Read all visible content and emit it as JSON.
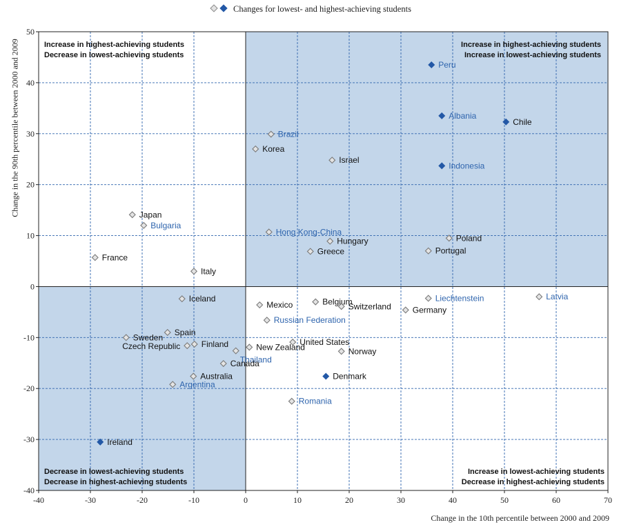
{
  "legend": {
    "label": "Changes for lowest- and highest-achieving students"
  },
  "colors": {
    "quad_fill": "#c3d6ea",
    "grid": "#2e64ad",
    "filled_marker": "#2358a6",
    "highlight_label": "#2e64ad",
    "label": "#111111"
  },
  "chart_data": {
    "type": "scatter",
    "title": "",
    "xlabel": "Change in the 10th percentile between 2000 and 2009",
    "ylabel": "Change in the 90th percentile between 2000 and 2009",
    "xlim": [
      -40,
      70
    ],
    "ylim": [
      -40,
      50
    ],
    "xticks": [
      -40,
      -30,
      -20,
      -10,
      0,
      10,
      20,
      30,
      40,
      50,
      60,
      70
    ],
    "yticks": [
      -40,
      -30,
      -20,
      -10,
      0,
      10,
      20,
      30,
      40,
      50
    ],
    "grid": true,
    "quadrant_labels": {
      "top_left": [
        "Increase in highest-achieving students",
        "Decrease in lowest-achieving students"
      ],
      "top_right": [
        "Increase in highest-achieving students",
        "Increase in lowest-achieving students"
      ],
      "bottom_left": [
        "Decrease in lowest-achieving students",
        "Decrease in highest-achieving students"
      ],
      "bottom_right": [
        "Increase in lowest-achieving students",
        "Decrease in highest-achieving students"
      ]
    },
    "points": [
      {
        "name": "Peru",
        "x": 35.9,
        "y": 43.5,
        "filled": true,
        "highlight": true,
        "side": "right"
      },
      {
        "name": "Albania",
        "x": 37.9,
        "y": 33.5,
        "filled": true,
        "highlight": true,
        "side": "right"
      },
      {
        "name": "Chile",
        "x": 50.3,
        "y": 32.3,
        "filled": true,
        "highlight": false,
        "side": "right"
      },
      {
        "name": "Brazil",
        "x": 4.9,
        "y": 29.9,
        "filled": false,
        "highlight": true,
        "side": "right"
      },
      {
        "name": "Korea",
        "x": 1.9,
        "y": 27.0,
        "filled": false,
        "highlight": false,
        "side": "right"
      },
      {
        "name": "Israel",
        "x": 16.7,
        "y": 24.8,
        "filled": false,
        "highlight": false,
        "side": "right"
      },
      {
        "name": "Indonesia",
        "x": 37.9,
        "y": 23.7,
        "filled": true,
        "highlight": true,
        "side": "right"
      },
      {
        "name": "Japan",
        "x": -21.9,
        "y": 14.1,
        "filled": false,
        "highlight": false,
        "side": "right"
      },
      {
        "name": "Bulgaria",
        "x": -19.7,
        "y": 12.0,
        "filled": false,
        "highlight": true,
        "side": "right"
      },
      {
        "name": "Hong Kong-China",
        "x": 4.5,
        "y": 10.7,
        "filled": false,
        "highlight": true,
        "side": "right"
      },
      {
        "name": "Poland",
        "x": 39.3,
        "y": 9.5,
        "filled": false,
        "highlight": false,
        "side": "right"
      },
      {
        "name": "Hungary",
        "x": 16.3,
        "y": 8.9,
        "filled": false,
        "highlight": false,
        "side": "right"
      },
      {
        "name": "Greece",
        "x": 12.5,
        "y": 6.9,
        "filled": false,
        "highlight": false,
        "side": "right"
      },
      {
        "name": "Portugal",
        "x": 35.3,
        "y": 7.0,
        "filled": false,
        "highlight": false,
        "side": "right"
      },
      {
        "name": "France",
        "x": -29.1,
        "y": 5.7,
        "filled": false,
        "highlight": false,
        "side": "right"
      },
      {
        "name": "Italy",
        "x": -10.0,
        "y": 3.0,
        "filled": false,
        "highlight": false,
        "side": "right"
      },
      {
        "name": "Iceland",
        "x": -12.3,
        "y": -2.4,
        "filled": false,
        "highlight": false,
        "side": "right"
      },
      {
        "name": "Latvia",
        "x": 56.7,
        "y": -2.0,
        "filled": false,
        "highlight": true,
        "side": "right"
      },
      {
        "name": "Liechtenstein",
        "x": 35.3,
        "y": -2.3,
        "filled": false,
        "highlight": true,
        "side": "right"
      },
      {
        "name": "Belgium",
        "x": 13.5,
        "y": -3.0,
        "filled": false,
        "highlight": false,
        "side": "right"
      },
      {
        "name": "Mexico",
        "x": 2.7,
        "y": -3.6,
        "filled": false,
        "highlight": false,
        "side": "right"
      },
      {
        "name": "Switzerland",
        "x": 18.5,
        "y": -3.9,
        "filled": false,
        "highlight": false,
        "side": "right"
      },
      {
        "name": "Germany",
        "x": 30.9,
        "y": -4.6,
        "filled": false,
        "highlight": false,
        "side": "right"
      },
      {
        "name": "Russian Federation",
        "x": 4.1,
        "y": -6.6,
        "filled": false,
        "highlight": true,
        "side": "right"
      },
      {
        "name": "Spain",
        "x": -15.1,
        "y": -9.0,
        "filled": false,
        "highlight": false,
        "side": "right"
      },
      {
        "name": "Sweden",
        "x": -23.1,
        "y": -10.0,
        "filled": false,
        "highlight": false,
        "side": "right"
      },
      {
        "name": "United States",
        "x": 9.1,
        "y": -10.9,
        "filled": false,
        "highlight": false,
        "side": "right"
      },
      {
        "name": "Finland",
        "x": -9.9,
        "y": -11.3,
        "filled": false,
        "highlight": false,
        "side": "right"
      },
      {
        "name": "Czech Republic",
        "x": -11.3,
        "y": -11.6,
        "filled": false,
        "highlight": false,
        "side": "left"
      },
      {
        "name": "New Zealand",
        "x": 0.7,
        "y": -11.9,
        "filled": false,
        "highlight": false,
        "side": "right"
      },
      {
        "name": "Thailand",
        "x": -1.9,
        "y": -12.6,
        "filled": false,
        "highlight": true,
        "side": "right-below"
      },
      {
        "name": "Norway",
        "x": 18.5,
        "y": -12.7,
        "filled": false,
        "highlight": false,
        "side": "right"
      },
      {
        "name": "Canada",
        "x": -4.3,
        "y": -15.1,
        "filled": false,
        "highlight": false,
        "side": "right"
      },
      {
        "name": "Australia",
        "x": -10.1,
        "y": -17.6,
        "filled": false,
        "highlight": false,
        "side": "right"
      },
      {
        "name": "Denmark",
        "x": 15.5,
        "y": -17.6,
        "filled": true,
        "highlight": false,
        "side": "right"
      },
      {
        "name": "Argentina",
        "x": -14.1,
        "y": -19.2,
        "filled": false,
        "highlight": true,
        "side": "right"
      },
      {
        "name": "Romania",
        "x": 8.9,
        "y": -22.5,
        "filled": false,
        "highlight": true,
        "side": "right"
      },
      {
        "name": "Ireland",
        "x": -28.1,
        "y": -30.5,
        "filled": true,
        "highlight": false,
        "side": "right"
      }
    ]
  }
}
